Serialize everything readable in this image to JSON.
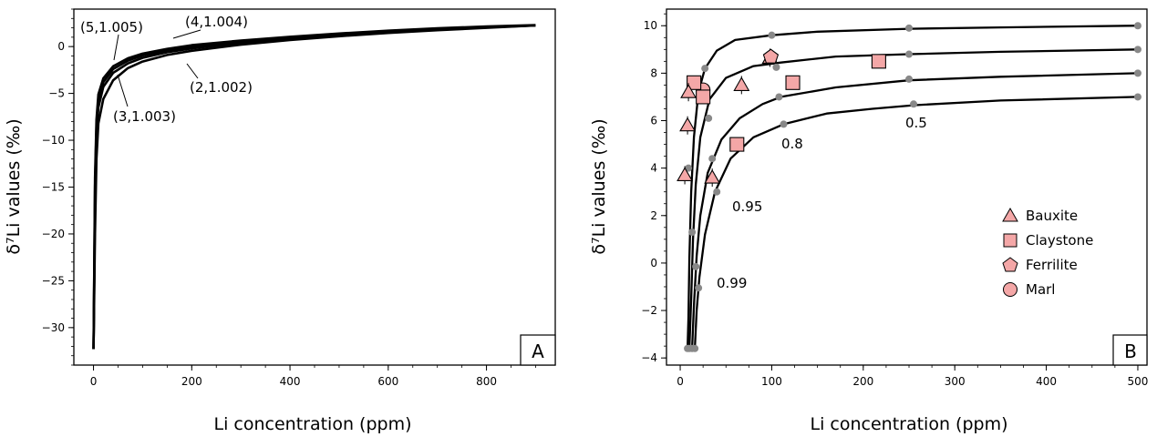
{
  "chart_data": [
    {
      "type": "line",
      "panel_label": "A",
      "xlabel": "Li concentration (ppm)",
      "ylabel": "δ⁷Li values (‰)",
      "xlim": [
        -40,
        940
      ],
      "ylim": [
        -34,
        4
      ],
      "xticks": [
        0,
        200,
        400,
        600,
        800
      ],
      "yticks": [
        0,
        -5,
        -10,
        -15,
        -20,
        -25,
        -30
      ],
      "series": [
        {
          "name": "(2,1.002)",
          "points": [
            [
              0,
              -32.3
            ],
            [
              3,
              -20
            ],
            [
              6,
              -12
            ],
            [
              10,
              -8.2
            ],
            [
              20,
              -5.6
            ],
            [
              40,
              -3.6
            ],
            [
              70,
              -2.3
            ],
            [
              100,
              -1.6
            ],
            [
              150,
              -0.9
            ],
            [
              200,
              -0.45
            ],
            [
              300,
              0.2
            ],
            [
              400,
              0.7
            ],
            [
              500,
              1.1
            ],
            [
              600,
              1.45
            ],
            [
              700,
              1.75
            ],
            [
              800,
              2.0
            ],
            [
              900,
              2.25
            ]
          ]
        },
        {
          "name": "(3,1.003)",
          "points": [
            [
              0,
              -32.3
            ],
            [
              3,
              -17
            ],
            [
              6,
              -9.5
            ],
            [
              10,
              -6.5
            ],
            [
              20,
              -4.3
            ],
            [
              40,
              -2.8
            ],
            [
              70,
              -1.8
            ],
            [
              100,
              -1.2
            ],
            [
              150,
              -0.6
            ],
            [
              200,
              -0.2
            ],
            [
              300,
              0.4
            ],
            [
              400,
              0.85
            ],
            [
              500,
              1.25
            ],
            [
              600,
              1.55
            ],
            [
              700,
              1.85
            ],
            [
              800,
              2.05
            ],
            [
              900,
              2.25
            ]
          ]
        },
        {
          "name": "(4,1.004)",
          "points": [
            [
              0,
              -32.3
            ],
            [
              3,
              -15
            ],
            [
              6,
              -8.5
            ],
            [
              10,
              -5.7
            ],
            [
              20,
              -3.8
            ],
            [
              40,
              -2.4
            ],
            [
              70,
              -1.5
            ],
            [
              100,
              -0.95
            ],
            [
              150,
              -0.4
            ],
            [
              200,
              0.0
            ],
            [
              300,
              0.55
            ],
            [
              400,
              1.0
            ],
            [
              500,
              1.35
            ],
            [
              600,
              1.65
            ],
            [
              700,
              1.9
            ],
            [
              800,
              2.1
            ],
            [
              900,
              2.25
            ]
          ]
        },
        {
          "name": "(5,1.005)",
          "points": [
            [
              0,
              -32.3
            ],
            [
              3,
              -14
            ],
            [
              6,
              -7.8
            ],
            [
              10,
              -5.1
            ],
            [
              20,
              -3.4
            ],
            [
              40,
              -2.1
            ],
            [
              70,
              -1.25
            ],
            [
              100,
              -0.75
            ],
            [
              150,
              -0.25
            ],
            [
              200,
              0.15
            ],
            [
              300,
              0.65
            ],
            [
              400,
              1.05
            ],
            [
              500,
              1.4
            ],
            [
              600,
              1.7
            ],
            [
              700,
              1.95
            ],
            [
              800,
              2.15
            ],
            [
              900,
              2.3
            ]
          ]
        }
      ],
      "annotations": [
        "(5,1.005)",
        "(4,1.004)",
        "(2,1.002)",
        "(3,1.003)"
      ]
    },
    {
      "type": "line+scatter",
      "panel_label": "B",
      "xlabel": "Li concentration (ppm)",
      "ylabel": "δ⁷Li values (‰)",
      "xlim": [
        -15,
        510
      ],
      "ylim": [
        -4.3,
        10.7
      ],
      "xticks": [
        0,
        100,
        200,
        300,
        400,
        500
      ],
      "yticks": [
        10,
        8,
        6,
        4,
        2,
        0,
        -2,
        -4
      ],
      "curves": [
        {
          "name": "0.99",
          "points": [
            [
              8,
              -3.6
            ],
            [
              9,
              -2.3
            ],
            [
              10,
              0.2
            ],
            [
              12,
              3.0
            ],
            [
              15,
              5.3
            ],
            [
              20,
              7.2
            ],
            [
              27,
              8.2
            ],
            [
              40,
              8.95
            ],
            [
              60,
              9.4
            ],
            [
              100,
              9.6
            ],
            [
              150,
              9.75
            ],
            [
              250,
              9.87
            ],
            [
              350,
              9.93
            ],
            [
              500,
              10.0
            ]
          ]
        },
        {
          "name": "0.95",
          "points": [
            [
              10,
              -3.6
            ],
            [
              12,
              -1.5
            ],
            [
              14,
              1.0
            ],
            [
              17,
              3.3
            ],
            [
              22,
              5.3
            ],
            [
              32,
              6.9
            ],
            [
              50,
              7.8
            ],
            [
              80,
              8.3
            ],
            [
              110,
              8.45
            ],
            [
              170,
              8.7
            ],
            [
              250,
              8.8
            ],
            [
              350,
              8.9
            ],
            [
              500,
              9.0
            ]
          ]
        },
        {
          "name": "0.8",
          "points": [
            [
              13,
              -3.6
            ],
            [
              15,
              -1.8
            ],
            [
              18,
              0.3
            ],
            [
              22,
              2.0
            ],
            [
              30,
              3.8
            ],
            [
              45,
              5.2
            ],
            [
              65,
              6.1
            ],
            [
              90,
              6.7
            ],
            [
              110,
              7.0
            ],
            [
              170,
              7.4
            ],
            [
              250,
              7.7
            ],
            [
              350,
              7.85
            ],
            [
              500,
              8.0
            ]
          ]
        },
        {
          "name": "0.5",
          "points": [
            [
              16,
              -3.6
            ],
            [
              18,
              -2.0
            ],
            [
              21,
              -0.6
            ],
            [
              27,
              1.2
            ],
            [
              38,
              3.0
            ],
            [
              55,
              4.4
            ],
            [
              80,
              5.3
            ],
            [
              113,
              5.85
            ],
            [
              160,
              6.3
            ],
            [
              210,
              6.5
            ],
            [
              255,
              6.65
            ],
            [
              350,
              6.85
            ],
            [
              500,
              7.0
            ]
          ]
        }
      ],
      "model_points": [
        [
          8,
          -3.6
        ],
        [
          10,
          -3.6
        ],
        [
          13,
          -3.6
        ],
        [
          16,
          -3.6
        ],
        [
          9,
          4.0
        ],
        [
          13,
          1.3
        ],
        [
          17,
          -0.15
        ],
        [
          20,
          -1.05
        ],
        [
          27,
          8.2
        ],
        [
          31,
          6.1
        ],
        [
          35,
          4.4
        ],
        [
          40,
          3.0
        ],
        [
          100,
          9.6
        ],
        [
          105,
          8.25
        ],
        [
          108,
          7.0
        ],
        [
          113,
          5.85
        ],
        [
          250,
          9.9
        ],
        [
          250,
          8.8
        ],
        [
          250,
          7.75
        ],
        [
          255,
          6.7
        ],
        [
          500,
          10.0
        ],
        [
          500,
          9.0
        ],
        [
          500,
          8.0
        ],
        [
          500,
          7.0
        ]
      ],
      "samples": {
        "Bauxite": [
          [
            5,
            3.7
          ],
          [
            8,
            5.8
          ],
          [
            9,
            7.2
          ],
          [
            35,
            3.6
          ],
          [
            67,
            7.5
          ],
          [
            98,
            8.65
          ]
        ],
        "Claystone": [
          [
            15,
            7.6
          ],
          [
            25,
            7.0
          ],
          [
            62,
            5.0
          ],
          [
            123,
            7.6
          ],
          [
            217,
            8.5
          ]
        ],
        "Ferrilite": [
          [
            99,
            8.7
          ]
        ],
        "Marl": [
          [
            25,
            7.3
          ]
        ]
      },
      "curve_labels": [
        "0.99",
        "0.95",
        "0.8",
        "0.5"
      ],
      "legend": [
        "Bauxite",
        "Claystone",
        "Ferrilite",
        "Marl"
      ],
      "legend_position": "right-middle",
      "colors": {
        "marker_fill": "#f4a7a7",
        "model_point": "#888888",
        "line": "#000000"
      }
    }
  ]
}
